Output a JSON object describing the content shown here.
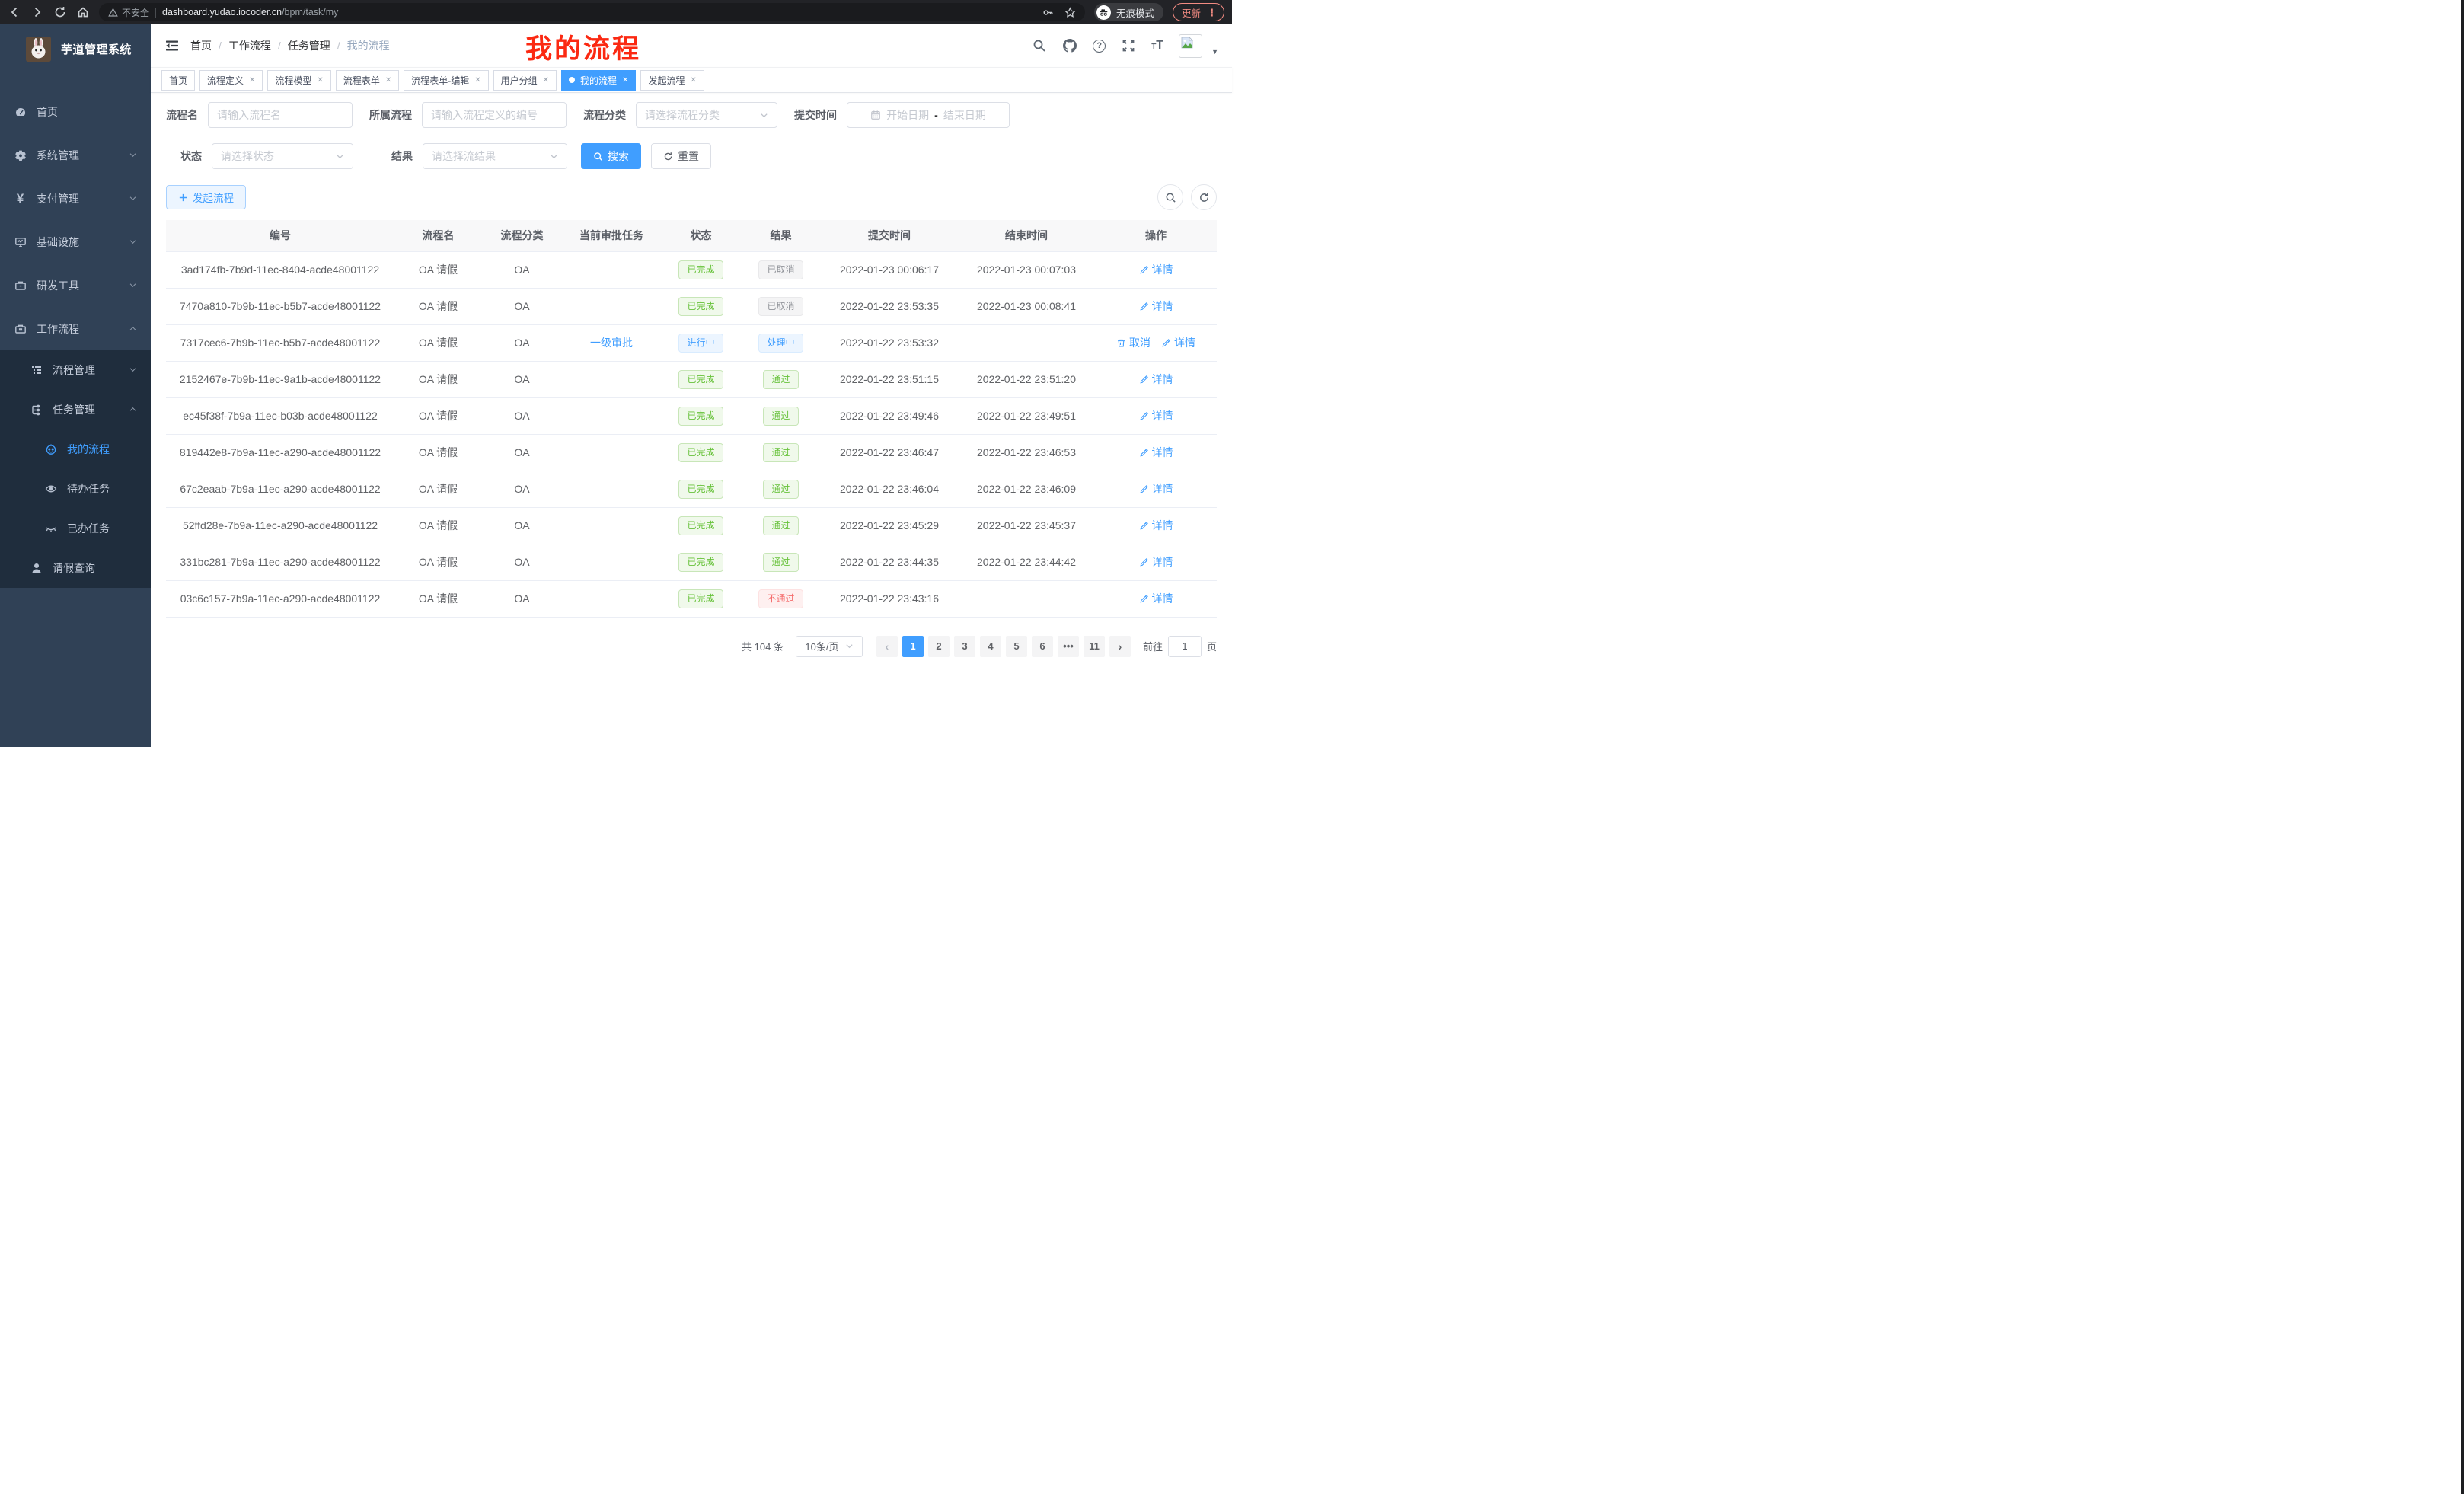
{
  "browser": {
    "security_label": "不安全",
    "url_host": "dashboard.yudao.iocoder.cn",
    "url_path": "/bpm/task/my",
    "incognito_label": "无痕模式",
    "update_label": "更新"
  },
  "sidebar": {
    "title": "芋道管理系统",
    "menu": [
      {
        "label": "首页",
        "icon": "dashboard-icon",
        "level": 1,
        "sub": false
      },
      {
        "label": "系统管理",
        "icon": "gear-icon",
        "level": 1,
        "sub": false,
        "chevron": "down"
      },
      {
        "label": "支付管理",
        "icon": "yen-icon",
        "level": 1,
        "sub": false,
        "chevron": "down"
      },
      {
        "label": "基础设施",
        "icon": "monitor-icon",
        "level": 1,
        "sub": false,
        "chevron": "down"
      },
      {
        "label": "研发工具",
        "icon": "toolbox-icon",
        "level": 1,
        "sub": false,
        "chevron": "down"
      },
      {
        "label": "工作流程",
        "icon": "briefcase-icon",
        "level": 1,
        "sub": false,
        "chevron": "up"
      },
      {
        "label": "流程管理",
        "icon": "list-tree-icon",
        "level": 2,
        "sub": true,
        "chevron": "down"
      },
      {
        "label": "任务管理",
        "icon": "flow-icon",
        "level": 2,
        "sub": true,
        "chevron": "up"
      },
      {
        "label": "我的流程",
        "icon": "robot-icon",
        "level": 3,
        "sub": true,
        "active": true
      },
      {
        "label": "待办任务",
        "icon": "eye-icon",
        "level": 3,
        "sub": true
      },
      {
        "label": "已办任务",
        "icon": "eye-closed-icon",
        "level": 3,
        "sub": true
      },
      {
        "label": "请假查询",
        "icon": "user-icon",
        "level": 2,
        "sub": true
      }
    ]
  },
  "header": {
    "breadcrumb": [
      "首页",
      "工作流程",
      "任务管理",
      "我的流程"
    ]
  },
  "annotation": {
    "text": "我的流程",
    "color": "#fb2912"
  },
  "tabs": [
    {
      "label": "首页",
      "closable": false,
      "active": false
    },
    {
      "label": "流程定义",
      "closable": true,
      "active": false
    },
    {
      "label": "流程模型",
      "closable": true,
      "active": false
    },
    {
      "label": "流程表单",
      "closable": true,
      "active": false
    },
    {
      "label": "流程表单-编辑",
      "closable": true,
      "active": false
    },
    {
      "label": "用户分组",
      "closable": true,
      "active": false
    },
    {
      "label": "我的流程",
      "closable": true,
      "active": true
    },
    {
      "label": "发起流程",
      "closable": true,
      "active": false
    }
  ],
  "filters": {
    "name": {
      "label": "流程名",
      "placeholder": "请输入流程名"
    },
    "process": {
      "label": "所属流程",
      "placeholder": "请输入流程定义的编号"
    },
    "category": {
      "label": "流程分类",
      "placeholder": "请选择流程分类"
    },
    "time": {
      "label": "提交时间",
      "start": "开始日期",
      "sep": "-",
      "end": "结束日期"
    },
    "status": {
      "label": "状态",
      "placeholder": "请选择状态"
    },
    "result": {
      "label": "结果",
      "placeholder": "请选择流结果"
    },
    "search_label": "搜索",
    "reset_label": "重置"
  },
  "toolbar": {
    "create_label": "发起流程"
  },
  "table": {
    "columns": [
      "编号",
      "流程名",
      "流程分类",
      "当前审批任务",
      "状态",
      "结果",
      "提交时间",
      "结束时间",
      "操作"
    ],
    "action_labels": {
      "detail": "详情",
      "cancel": "取消"
    },
    "rows": [
      {
        "id": "3ad174fb-7b9d-11ec-8404-acde48001122",
        "name": "OA 请假",
        "category": "OA",
        "task": "",
        "status": "已完成",
        "status_type": "success",
        "result": "已取消",
        "result_type": "info",
        "submit": "2022-01-23 00:06:17",
        "end": "2022-01-23 00:07:03",
        "actions": [
          "detail"
        ]
      },
      {
        "id": "7470a810-7b9b-11ec-b5b7-acde48001122",
        "name": "OA 请假",
        "category": "OA",
        "task": "",
        "status": "已完成",
        "status_type": "success",
        "result": "已取消",
        "result_type": "info",
        "submit": "2022-01-22 23:53:35",
        "end": "2022-01-23 00:08:41",
        "actions": [
          "detail"
        ]
      },
      {
        "id": "7317cec6-7b9b-11ec-b5b7-acde48001122",
        "name": "OA 请假",
        "category": "OA",
        "task": "一级审批",
        "status": "进行中",
        "status_type": "primary",
        "result": "处理中",
        "result_type": "primary",
        "submit": "2022-01-22 23:53:32",
        "end": "",
        "actions": [
          "cancel",
          "detail"
        ]
      },
      {
        "id": "2152467e-7b9b-11ec-9a1b-acde48001122",
        "name": "OA 请假",
        "category": "OA",
        "task": "",
        "status": "已完成",
        "status_type": "success",
        "result": "通过",
        "result_type": "success",
        "submit": "2022-01-22 23:51:15",
        "end": "2022-01-22 23:51:20",
        "actions": [
          "detail"
        ]
      },
      {
        "id": "ec45f38f-7b9a-11ec-b03b-acde48001122",
        "name": "OA 请假",
        "category": "OA",
        "task": "",
        "status": "已完成",
        "status_type": "success",
        "result": "通过",
        "result_type": "success",
        "submit": "2022-01-22 23:49:46",
        "end": "2022-01-22 23:49:51",
        "actions": [
          "detail"
        ]
      },
      {
        "id": "819442e8-7b9a-11ec-a290-acde48001122",
        "name": "OA 请假",
        "category": "OA",
        "task": "",
        "status": "已完成",
        "status_type": "success",
        "result": "通过",
        "result_type": "success",
        "submit": "2022-01-22 23:46:47",
        "end": "2022-01-22 23:46:53",
        "actions": [
          "detail"
        ]
      },
      {
        "id": "67c2eaab-7b9a-11ec-a290-acde48001122",
        "name": "OA 请假",
        "category": "OA",
        "task": "",
        "status": "已完成",
        "status_type": "success",
        "result": "通过",
        "result_type": "success",
        "submit": "2022-01-22 23:46:04",
        "end": "2022-01-22 23:46:09",
        "actions": [
          "detail"
        ]
      },
      {
        "id": "52ffd28e-7b9a-11ec-a290-acde48001122",
        "name": "OA 请假",
        "category": "OA",
        "task": "",
        "status": "已完成",
        "status_type": "success",
        "result": "通过",
        "result_type": "success",
        "submit": "2022-01-22 23:45:29",
        "end": "2022-01-22 23:45:37",
        "actions": [
          "detail"
        ]
      },
      {
        "id": "331bc281-7b9a-11ec-a290-acde48001122",
        "name": "OA 请假",
        "category": "OA",
        "task": "",
        "status": "已完成",
        "status_type": "success",
        "result": "通过",
        "result_type": "success",
        "submit": "2022-01-22 23:44:35",
        "end": "2022-01-22 23:44:42",
        "actions": [
          "detail"
        ]
      },
      {
        "id": "03c6c157-7b9a-11ec-a290-acde48001122",
        "name": "OA 请假",
        "category": "OA",
        "task": "",
        "status": "已完成",
        "status_type": "success",
        "result": "不通过",
        "result_type": "danger",
        "submit": "2022-01-22 23:43:16",
        "end": "",
        "actions": [
          "detail"
        ]
      }
    ]
  },
  "pagination": {
    "total_label": "共 104 条",
    "page_size": "10条/页",
    "pages": [
      "1",
      "2",
      "3",
      "4",
      "5",
      "6",
      "•••",
      "11"
    ],
    "active_page": "1",
    "goto_label": "前往",
    "goto_value": "1",
    "page_suffix": "页"
  },
  "colors": {
    "accent": "#409eff",
    "success": "#67c23a",
    "info": "#909399",
    "danger": "#f56c6c",
    "sidebar_bg": "#304156",
    "sidebar_sub_bg": "#1f2d3d",
    "annotation": "#fb2912"
  }
}
